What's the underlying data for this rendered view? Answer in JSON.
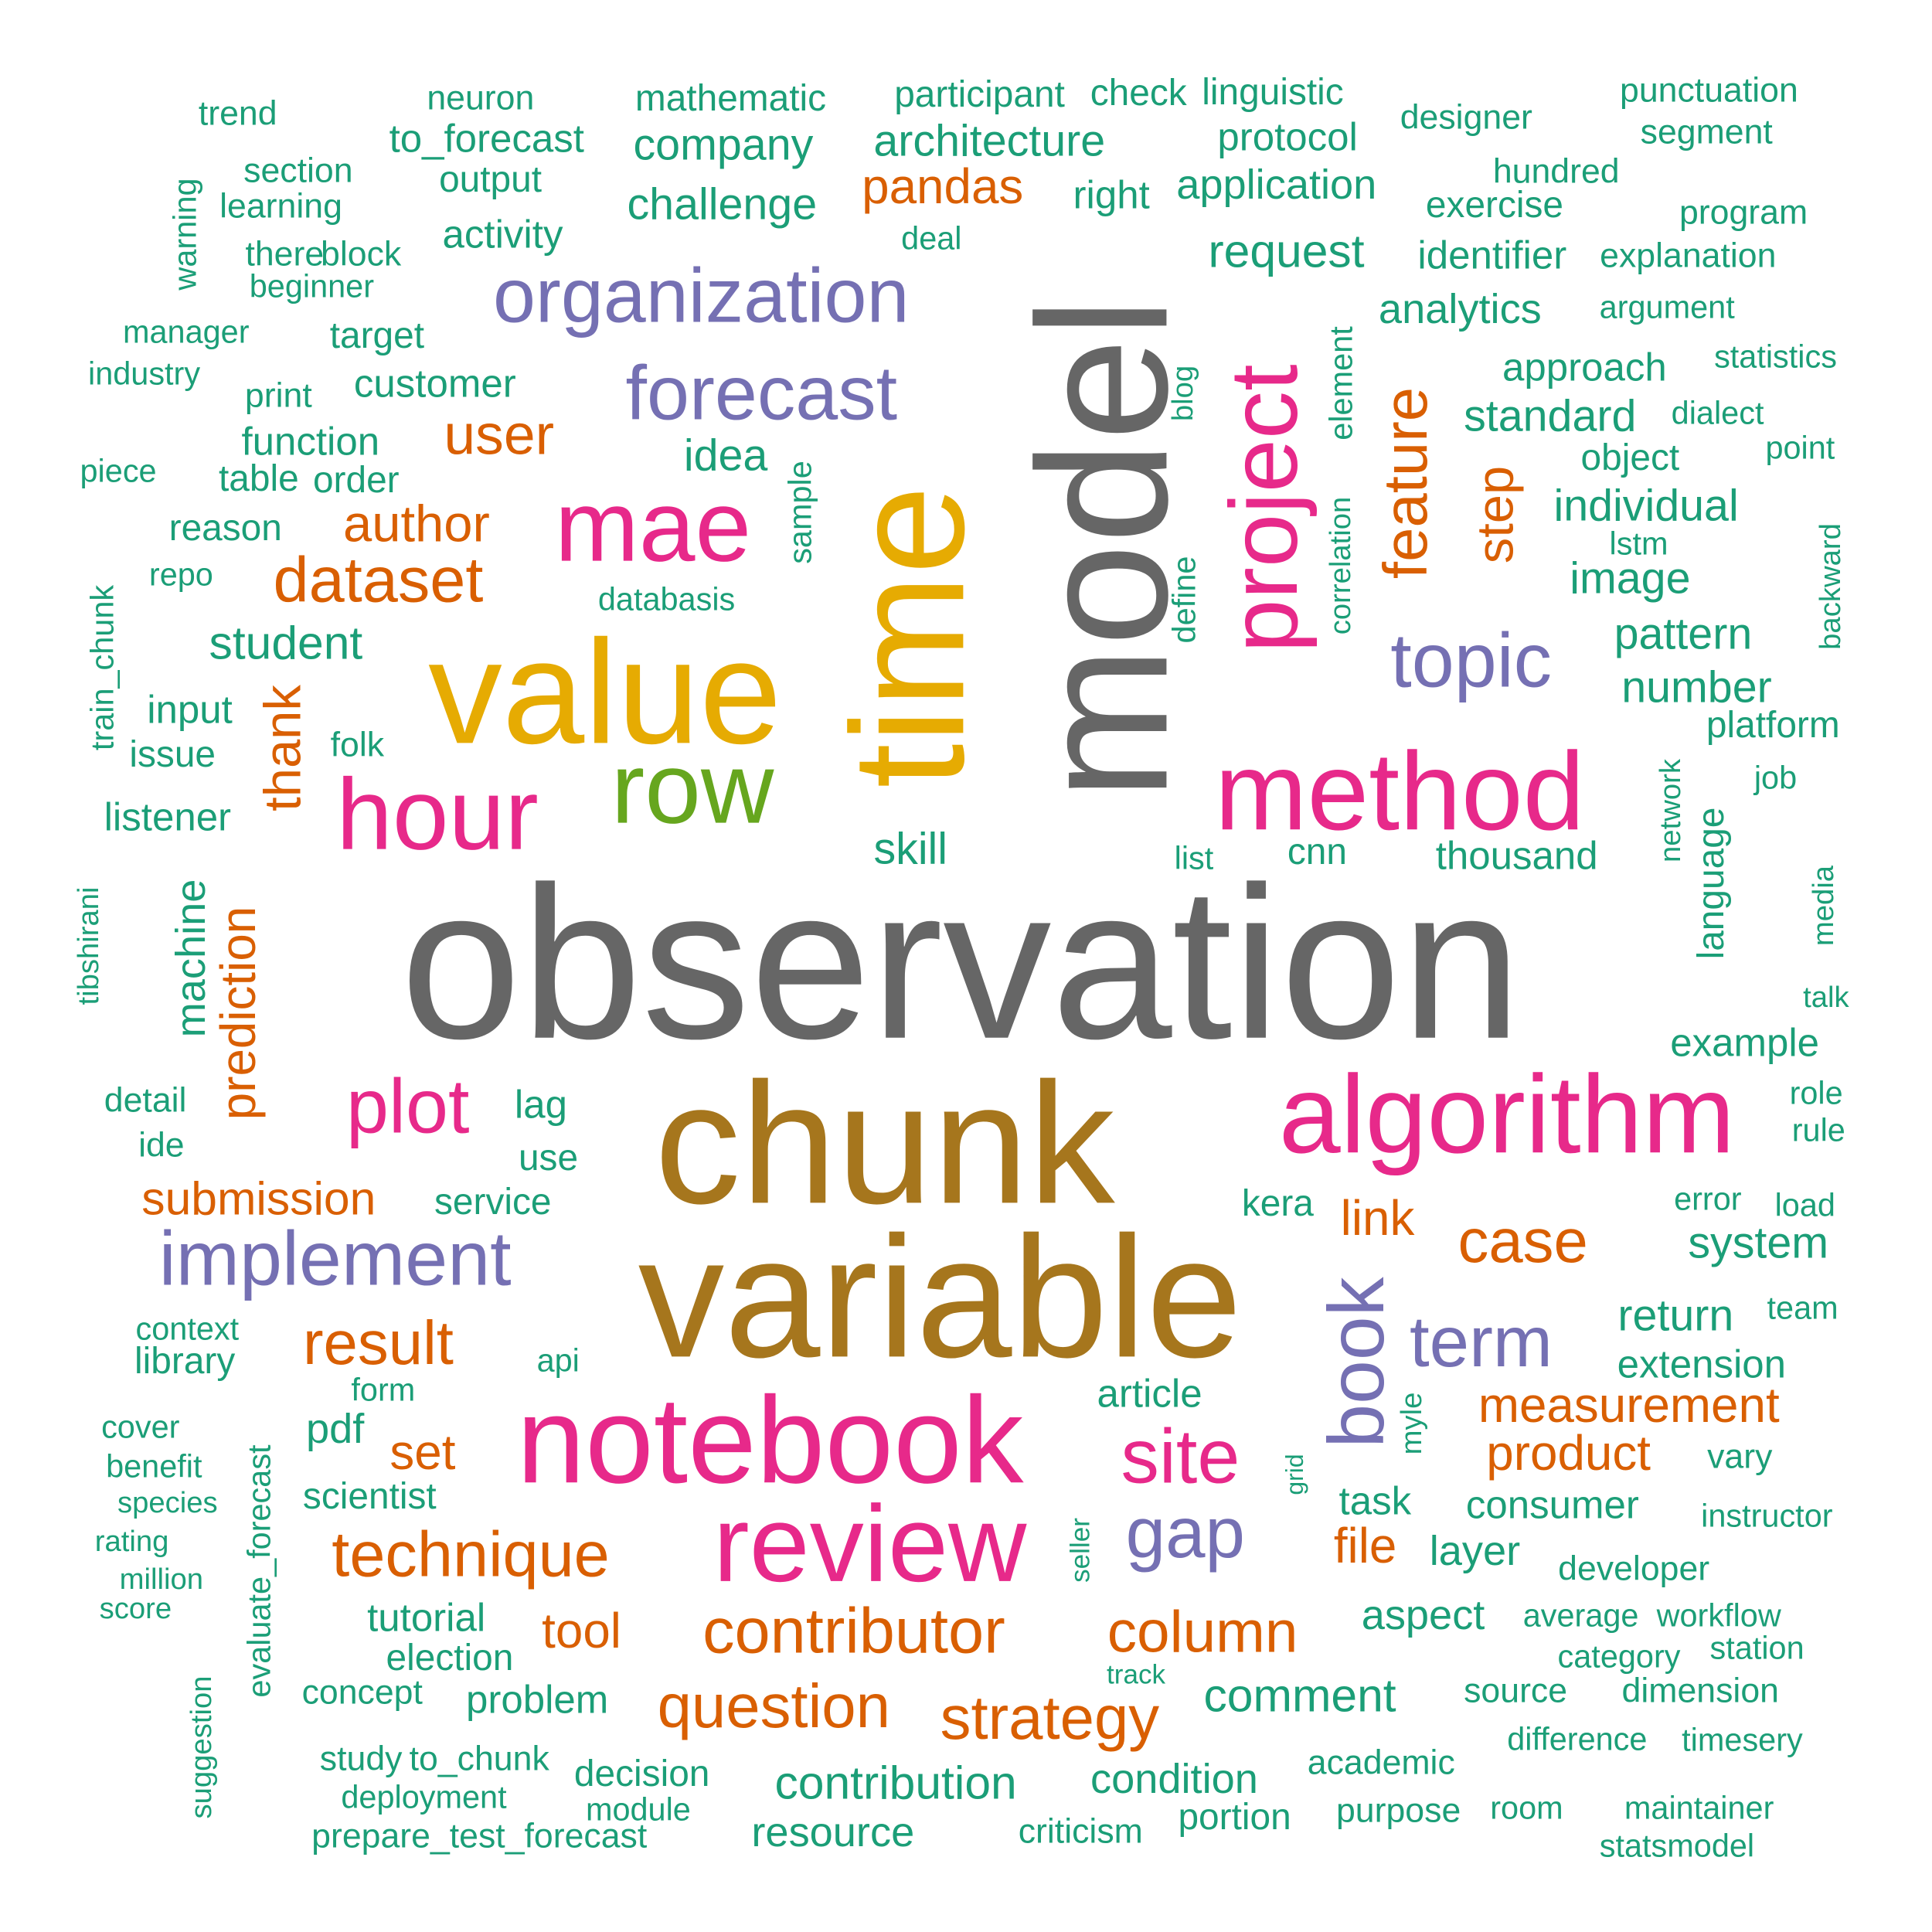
{
  "palette": {
    "gray": "#666666",
    "teal": "#1b9e77",
    "orange": "#d95f02",
    "purple": "#7570b3",
    "pink": "#e7298a",
    "green": "#66a61e",
    "gold": "#e6ab02",
    "brown": "#a6761d"
  },
  "words": [
    {
      "text": "observation",
      "color": "gray"
    },
    {
      "text": "model",
      "color": "gray"
    },
    {
      "text": "chunk",
      "color": "brown"
    },
    {
      "text": "variable",
      "color": "brown"
    },
    {
      "text": "time",
      "color": "gold"
    },
    {
      "text": "value",
      "color": "gold"
    },
    {
      "text": "notebook",
      "color": "pink"
    },
    {
      "text": "method",
      "color": "pink"
    },
    {
      "text": "algorithm",
      "color": "pink"
    },
    {
      "text": "review",
      "color": "pink"
    },
    {
      "text": "mae",
      "color": "pink"
    },
    {
      "text": "hour",
      "color": "pink"
    },
    {
      "text": "row",
      "color": "green"
    },
    {
      "text": "project",
      "color": "pink"
    },
    {
      "text": "organization",
      "color": "purple"
    },
    {
      "text": "forecast",
      "color": "purple"
    },
    {
      "text": "implement",
      "color": "purple"
    },
    {
      "text": "plot",
      "color": "pink"
    },
    {
      "text": "site",
      "color": "pink"
    },
    {
      "text": "book",
      "color": "purple"
    },
    {
      "text": "topic",
      "color": "purple"
    },
    {
      "text": "term",
      "color": "purple"
    },
    {
      "text": "gap",
      "color": "purple"
    },
    {
      "text": "contributor",
      "color": "orange"
    },
    {
      "text": "question",
      "color": "orange"
    },
    {
      "text": "technique",
      "color": "orange"
    },
    {
      "text": "strategy",
      "color": "orange"
    },
    {
      "text": "column",
      "color": "orange"
    },
    {
      "text": "dataset",
      "color": "orange"
    },
    {
      "text": "feature",
      "color": "orange"
    },
    {
      "text": "case",
      "color": "orange"
    },
    {
      "text": "result",
      "color": "orange"
    },
    {
      "text": "step",
      "color": "orange"
    },
    {
      "text": "user",
      "color": "orange"
    },
    {
      "text": "author",
      "color": "orange"
    },
    {
      "text": "thank",
      "color": "orange"
    },
    {
      "text": "prediction",
      "color": "orange"
    },
    {
      "text": "submission",
      "color": "orange"
    },
    {
      "text": "measurement",
      "color": "orange"
    },
    {
      "text": "product",
      "color": "orange"
    },
    {
      "text": "pandas",
      "color": "orange"
    },
    {
      "text": "link",
      "color": "orange"
    },
    {
      "text": "file",
      "color": "orange"
    },
    {
      "text": "tool",
      "color": "orange"
    },
    {
      "text": "set",
      "color": "orange"
    },
    {
      "text": "trend",
      "color": "teal"
    },
    {
      "text": "neuron",
      "color": "teal"
    },
    {
      "text": "mathematic",
      "color": "teal"
    },
    {
      "text": "participant",
      "color": "teal"
    },
    {
      "text": "check",
      "color": "teal"
    },
    {
      "text": "linguistic",
      "color": "teal"
    },
    {
      "text": "punctuation",
      "color": "teal"
    },
    {
      "text": "designer",
      "color": "teal"
    },
    {
      "text": "segment",
      "color": "teal"
    },
    {
      "text": "to_forecast",
      "color": "teal"
    },
    {
      "text": "company",
      "color": "teal"
    },
    {
      "text": "architecture",
      "color": "teal"
    },
    {
      "text": "protocol",
      "color": "teal"
    },
    {
      "text": "section",
      "color": "teal"
    },
    {
      "text": "output",
      "color": "teal"
    },
    {
      "text": "hundred",
      "color": "teal"
    },
    {
      "text": "warning",
      "color": "teal"
    },
    {
      "text": "learning",
      "color": "teal"
    },
    {
      "text": "challenge",
      "color": "teal"
    },
    {
      "text": "right",
      "color": "teal"
    },
    {
      "text": "application",
      "color": "teal"
    },
    {
      "text": "exercise",
      "color": "teal"
    },
    {
      "text": "program",
      "color": "teal"
    },
    {
      "text": "activity",
      "color": "teal"
    },
    {
      "text": "deal",
      "color": "teal"
    },
    {
      "text": "there",
      "color": "teal"
    },
    {
      "text": "block",
      "color": "teal"
    },
    {
      "text": "request",
      "color": "teal"
    },
    {
      "text": "identifier",
      "color": "teal"
    },
    {
      "text": "explanation",
      "color": "teal"
    },
    {
      "text": "beginner",
      "color": "teal"
    },
    {
      "text": "analytics",
      "color": "teal"
    },
    {
      "text": "argument",
      "color": "teal"
    },
    {
      "text": "manager",
      "color": "teal"
    },
    {
      "text": "target",
      "color": "teal"
    },
    {
      "text": "approach",
      "color": "teal"
    },
    {
      "text": "statistics",
      "color": "teal"
    },
    {
      "text": "industry",
      "color": "teal"
    },
    {
      "text": "customer",
      "color": "teal"
    },
    {
      "text": "print",
      "color": "teal"
    },
    {
      "text": "blog",
      "color": "teal"
    },
    {
      "text": "element",
      "color": "teal"
    },
    {
      "text": "standard",
      "color": "teal"
    },
    {
      "text": "dialect",
      "color": "teal"
    },
    {
      "text": "function",
      "color": "teal"
    },
    {
      "text": "idea",
      "color": "teal"
    },
    {
      "text": "object",
      "color": "teal"
    },
    {
      "text": "point",
      "color": "teal"
    },
    {
      "text": "piece",
      "color": "teal"
    },
    {
      "text": "table",
      "color": "teal"
    },
    {
      "text": "order",
      "color": "teal"
    },
    {
      "text": "sample",
      "color": "teal"
    },
    {
      "text": "individual",
      "color": "teal"
    },
    {
      "text": "reason",
      "color": "teal"
    },
    {
      "text": "lstm",
      "color": "teal"
    },
    {
      "text": "backward",
      "color": "teal"
    },
    {
      "text": "repo",
      "color": "teal"
    },
    {
      "text": "define",
      "color": "teal"
    },
    {
      "text": "correlation",
      "color": "teal"
    },
    {
      "text": "image",
      "color": "teal"
    },
    {
      "text": "databasis",
      "color": "teal"
    },
    {
      "text": "train_chunk",
      "color": "teal"
    },
    {
      "text": "student",
      "color": "teal"
    },
    {
      "text": "pattern",
      "color": "teal"
    },
    {
      "text": "number",
      "color": "teal"
    },
    {
      "text": "input",
      "color": "teal"
    },
    {
      "text": "platform",
      "color": "teal"
    },
    {
      "text": "issue",
      "color": "teal"
    },
    {
      "text": "folk",
      "color": "teal"
    },
    {
      "text": "network",
      "color": "teal"
    },
    {
      "text": "language",
      "color": "teal"
    },
    {
      "text": "job",
      "color": "teal"
    },
    {
      "text": "listener",
      "color": "teal"
    },
    {
      "text": "skill",
      "color": "teal"
    },
    {
      "text": "list",
      "color": "teal"
    },
    {
      "text": "cnn",
      "color": "teal"
    },
    {
      "text": "thousand",
      "color": "teal"
    },
    {
      "text": "tibshirani",
      "color": "teal"
    },
    {
      "text": "machine",
      "color": "teal"
    },
    {
      "text": "media",
      "color": "teal"
    },
    {
      "text": "talk",
      "color": "teal"
    },
    {
      "text": "example",
      "color": "teal"
    },
    {
      "text": "detail",
      "color": "teal"
    },
    {
      "text": "lag",
      "color": "teal"
    },
    {
      "text": "role",
      "color": "teal"
    },
    {
      "text": "ide",
      "color": "teal"
    },
    {
      "text": "use",
      "color": "teal"
    },
    {
      "text": "rule",
      "color": "teal"
    },
    {
      "text": "service",
      "color": "teal"
    },
    {
      "text": "kera",
      "color": "teal"
    },
    {
      "text": "error",
      "color": "teal"
    },
    {
      "text": "load",
      "color": "teal"
    },
    {
      "text": "system",
      "color": "teal"
    },
    {
      "text": "team",
      "color": "teal"
    },
    {
      "text": "context",
      "color": "teal"
    },
    {
      "text": "return",
      "color": "teal"
    },
    {
      "text": "library",
      "color": "teal"
    },
    {
      "text": "api",
      "color": "teal"
    },
    {
      "text": "extension",
      "color": "teal"
    },
    {
      "text": "form",
      "color": "teal"
    },
    {
      "text": "article",
      "color": "teal"
    },
    {
      "text": "cover",
      "color": "teal"
    },
    {
      "text": "pdf",
      "color": "teal"
    },
    {
      "text": "myle",
      "color": "teal"
    },
    {
      "text": "benefit",
      "color": "teal"
    },
    {
      "text": "vary",
      "color": "teal"
    },
    {
      "text": "grid",
      "color": "teal"
    },
    {
      "text": "scientist",
      "color": "teal"
    },
    {
      "text": "task",
      "color": "teal"
    },
    {
      "text": "consumer",
      "color": "teal"
    },
    {
      "text": "species",
      "color": "teal"
    },
    {
      "text": "instructor",
      "color": "teal"
    },
    {
      "text": "rating",
      "color": "teal"
    },
    {
      "text": "seller",
      "color": "teal"
    },
    {
      "text": "layer",
      "color": "teal"
    },
    {
      "text": "developer",
      "color": "teal"
    },
    {
      "text": "million",
      "color": "teal"
    },
    {
      "text": "score",
      "color": "teal"
    },
    {
      "text": "evaluate_forecast",
      "color": "teal"
    },
    {
      "text": "tutorial",
      "color": "teal"
    },
    {
      "text": "aspect",
      "color": "teal"
    },
    {
      "text": "average",
      "color": "teal"
    },
    {
      "text": "workflow",
      "color": "teal"
    },
    {
      "text": "election",
      "color": "teal"
    },
    {
      "text": "category",
      "color": "teal"
    },
    {
      "text": "station",
      "color": "teal"
    },
    {
      "text": "suggestion",
      "color": "teal"
    },
    {
      "text": "track",
      "color": "teal"
    },
    {
      "text": "concept",
      "color": "teal"
    },
    {
      "text": "problem",
      "color": "teal"
    },
    {
      "text": "comment",
      "color": "teal"
    },
    {
      "text": "source",
      "color": "teal"
    },
    {
      "text": "dimension",
      "color": "teal"
    },
    {
      "text": "difference",
      "color": "teal"
    },
    {
      "text": "timesery",
      "color": "teal"
    },
    {
      "text": "study",
      "color": "teal"
    },
    {
      "text": "to_chunk",
      "color": "teal"
    },
    {
      "text": "academic",
      "color": "teal"
    },
    {
      "text": "decision",
      "color": "teal"
    },
    {
      "text": "contribution",
      "color": "teal"
    },
    {
      "text": "condition",
      "color": "teal"
    },
    {
      "text": "deployment",
      "color": "teal"
    },
    {
      "text": "module",
      "color": "teal"
    },
    {
      "text": "purpose",
      "color": "teal"
    },
    {
      "text": "room",
      "color": "teal"
    },
    {
      "text": "maintainer",
      "color": "teal"
    },
    {
      "text": "prepare_test_forecast",
      "color": "teal"
    },
    {
      "text": "resource",
      "color": "teal"
    },
    {
      "text": "criticism",
      "color": "teal"
    },
    {
      "text": "portion",
      "color": "teal"
    },
    {
      "text": "statsmodel",
      "color": "teal"
    }
  ]
}
